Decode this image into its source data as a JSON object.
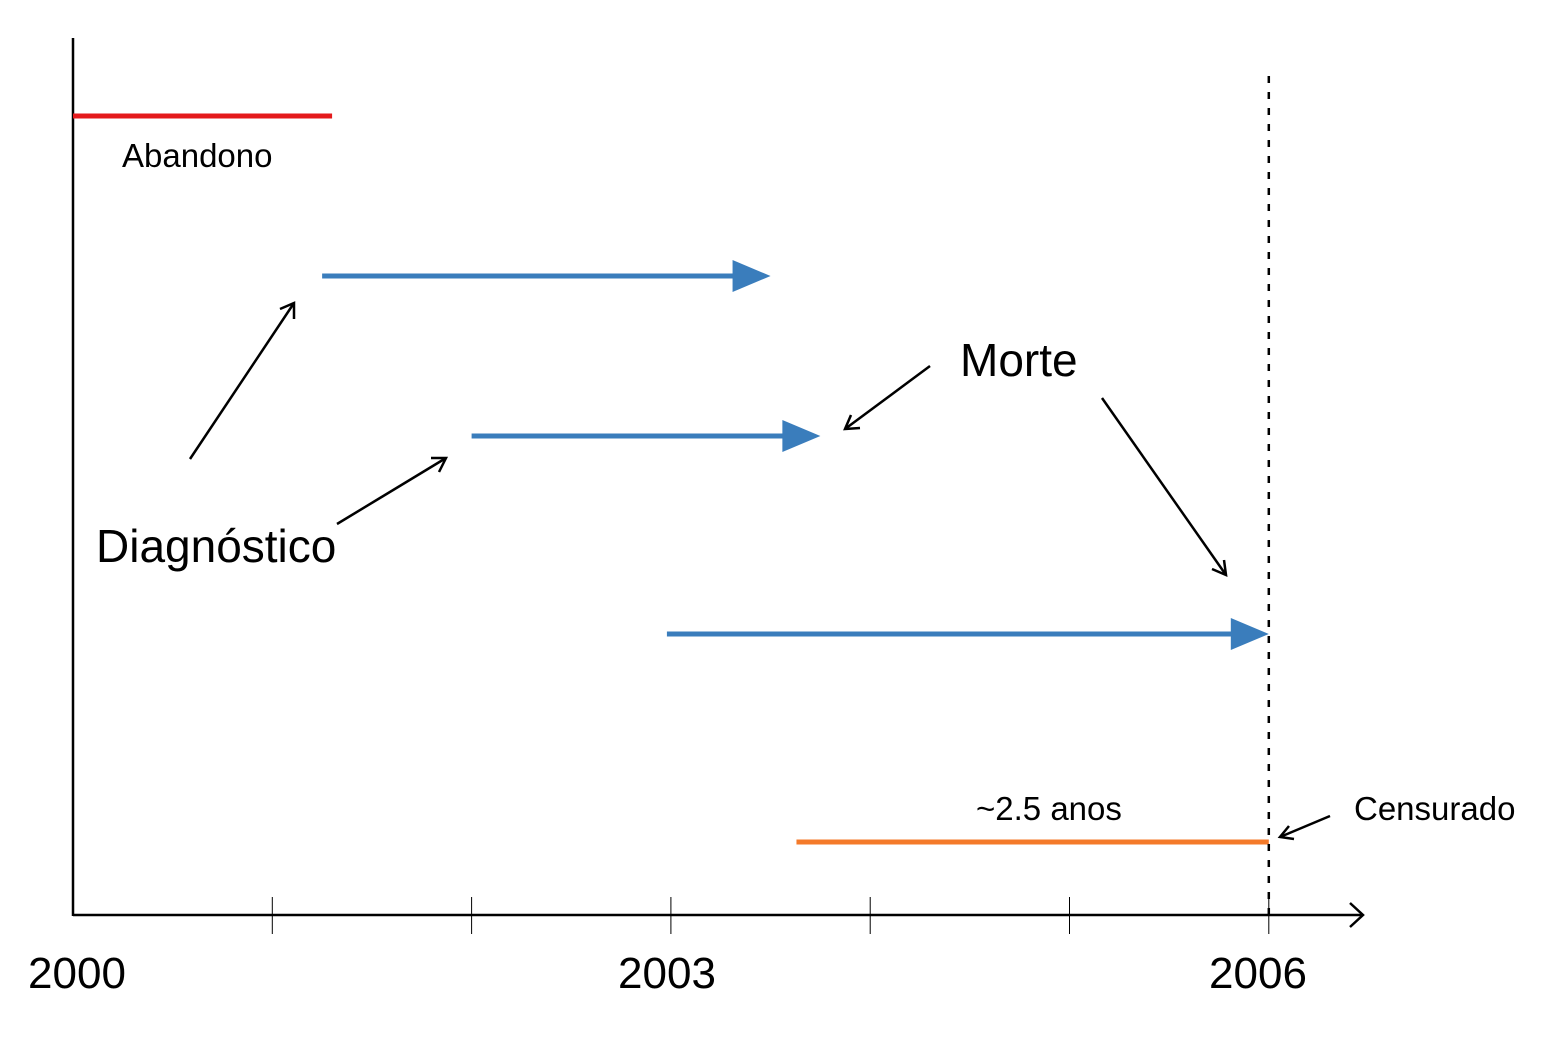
{
  "chart_data": {
    "type": "timeline",
    "x_axis": {
      "range": [
        2000,
        2006.5
      ],
      "ticks": [
        2000,
        2001,
        2002,
        2003,
        2004,
        2005,
        2006
      ],
      "tick_labels": [
        "2000",
        "2003",
        "2006"
      ]
    },
    "censor_year": 2006,
    "segments": [
      {
        "start": 2000.0,
        "end": 2001.3,
        "kind": "abandono",
        "color": "#e41a1c"
      },
      {
        "start": 2001.25,
        "end": 2003.5,
        "kind": "event",
        "color": "#3a7dbc"
      },
      {
        "start": 2002.0,
        "end": 2003.75,
        "kind": "event",
        "color": "#3a7dbc"
      },
      {
        "start": 2002.98,
        "end": 2006.0,
        "kind": "event",
        "color": "#3a7dbc"
      },
      {
        "start": 2003.63,
        "end": 2006.0,
        "kind": "censored",
        "color": "#f47a2a"
      }
    ],
    "annotations": {
      "abandono": "Abandono",
      "diagnostico": "Diagnóstico",
      "morte": "Morte",
      "duration": "~2.5 anos",
      "censurado": "Censurado"
    }
  }
}
